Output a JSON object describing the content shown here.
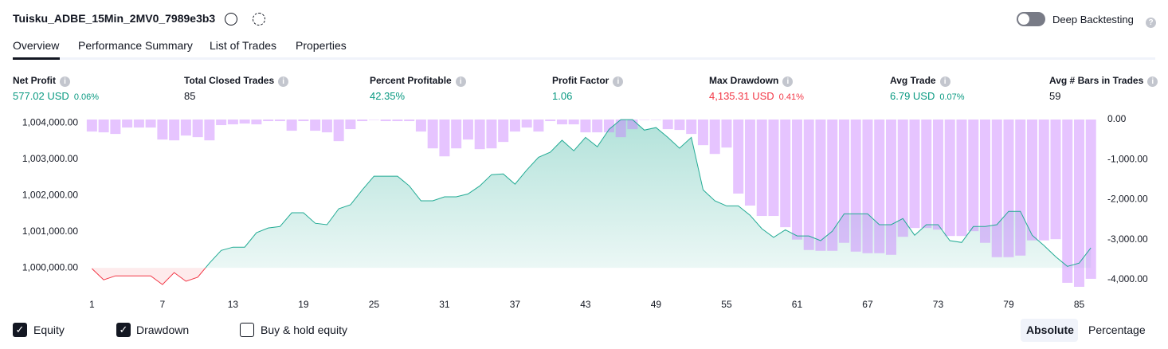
{
  "header": {
    "title": "Tuisku_ADBE_15Min_2MV0_7989e3b3",
    "deep_backtesting": "Deep Backtesting"
  },
  "tabs": [
    "Overview",
    "Performance Summary",
    "List of Trades",
    "Properties"
  ],
  "metrics": [
    {
      "label": "Net Profit",
      "value": "577.02 USD",
      "pct": "0.06%",
      "color": "#089981"
    },
    {
      "label": "Total Closed Trades",
      "value": "85",
      "color": "#131722"
    },
    {
      "label": "Percent Profitable",
      "value": "42.35%",
      "color": "#089981"
    },
    {
      "label": "Profit Factor",
      "value": "1.06",
      "color": "#089981"
    },
    {
      "label": "Max Drawdown",
      "value": "4,135.31 USD",
      "pct": "0.41%",
      "color": "#f23645"
    },
    {
      "label": "Avg Trade",
      "value": "6.79 USD",
      "pct": "0.07%",
      "color": "#089981"
    },
    {
      "label": "Avg # Bars in Trades",
      "value": "59",
      "color": "#131722"
    }
  ],
  "chart_data": {
    "type": "combo",
    "x": [
      1,
      2,
      3,
      4,
      5,
      6,
      7,
      8,
      9,
      10,
      11,
      12,
      13,
      14,
      15,
      16,
      17,
      18,
      19,
      20,
      21,
      22,
      23,
      24,
      25,
      26,
      27,
      28,
      29,
      30,
      31,
      32,
      33,
      34,
      35,
      36,
      37,
      38,
      39,
      40,
      41,
      42,
      43,
      44,
      45,
      46,
      47,
      48,
      49,
      50,
      51,
      52,
      53,
      54,
      55,
      56,
      57,
      58,
      59,
      60,
      61,
      62,
      63,
      64,
      65,
      66,
      67,
      68,
      69,
      70,
      71,
      72,
      73,
      74,
      75,
      76,
      77,
      78,
      79,
      80,
      81,
      82,
      83,
      84,
      85,
      86
    ],
    "xlim": [
      0.5,
      87
    ],
    "xticks": [
      1,
      7,
      13,
      19,
      25,
      31,
      37,
      43,
      49,
      55,
      61,
      67,
      73,
      79,
      85
    ],
    "ylim": [
      999300,
      1004180
    ],
    "yticks": [
      {
        "value": 1000000,
        "label": "1,000,000.00"
      },
      {
        "value": 1001000,
        "label": "1,001,000.00"
      },
      {
        "value": 1002000,
        "label": "1,002,000.00"
      },
      {
        "value": 1003000,
        "label": "1,003,000.00"
      },
      {
        "value": 1004000,
        "label": "1,004,000.00"
      }
    ],
    "y2lim": [
      -4340,
      80
    ],
    "y2ticks": [
      {
        "value": 0,
        "label": "0.00"
      },
      {
        "value": -1000,
        "label": "-1,000.00"
      },
      {
        "value": -2000,
        "label": "-2,000.00"
      },
      {
        "value": -3000,
        "label": "-3,000.00"
      },
      {
        "value": -4000,
        "label": "-4,000.00"
      }
    ],
    "series": [
      {
        "name": "Equity",
        "type": "line",
        "color": "#22ab94",
        "negative_color": "#f23645",
        "values": [
          999980,
          999670,
          999780,
          999780,
          999780,
          999780,
          999540,
          999870,
          999630,
          999740,
          1000130,
          1000480,
          1000570,
          1000570,
          1000970,
          1001100,
          1001140,
          1001520,
          1001520,
          1001230,
          1001190,
          1001630,
          1001740,
          1002150,
          1002530,
          1002530,
          1002530,
          1002260,
          1001850,
          1001850,
          1001960,
          1001960,
          1002040,
          1002260,
          1002570,
          1002590,
          1002310,
          1002700,
          1003050,
          1003190,
          1003520,
          1003230,
          1003600,
          1003340,
          1003820,
          1004090,
          1004090,
          1003800,
          1003870,
          1003600,
          1003300,
          1003600,
          1002150,
          1001850,
          1001710,
          1001710,
          1001450,
          1001080,
          1000840,
          1001050,
          1000880,
          1000880,
          1000750,
          1001010,
          1001490,
          1001490,
          1001490,
          1001190,
          1001190,
          1001360,
          1000900,
          1001190,
          1001190,
          1000750,
          1000700,
          1001140,
          1001140,
          1001190,
          1001560,
          1001560,
          1000900,
          1000620,
          1000310,
          1000040,
          1000130,
          1000550
        ]
      },
      {
        "name": "Drawdown",
        "type": "bar",
        "axis": "y2",
        "color": "#c77dff",
        "values": [
          -300,
          -320,
          -360,
          -200,
          -200,
          -200,
          -500,
          -520,
          -400,
          -440,
          -520,
          -140,
          -120,
          -100,
          -120,
          -40,
          -40,
          -280,
          -40,
          -280,
          -320,
          -540,
          -240,
          -40,
          0,
          -40,
          -40,
          -40,
          -300,
          -720,
          -920,
          -720,
          -500,
          -740,
          -720,
          -560,
          -300,
          -200,
          -300,
          -40,
          -120,
          -120,
          -320,
          -320,
          -320,
          -440,
          -240,
          0,
          0,
          -240,
          -260,
          -360,
          -640,
          -860,
          -700,
          -1850,
          -2150,
          -2410,
          -2410,
          -2690,
          -3000,
          -3260,
          -3280,
          -3280,
          -3080,
          -3300,
          -3340,
          -3340,
          -3380,
          -2930,
          -2710,
          -2710,
          -2750,
          -2910,
          -2910,
          -2790,
          -3080,
          -3440,
          -3440,
          -3400,
          -3020,
          -3020,
          -2990,
          -4080,
          -4180,
          -3980
        ]
      }
    ]
  },
  "footer": {
    "buy_hold": "Buy & hold equity",
    "scale_options": [
      "Absolute",
      "Percentage"
    ]
  }
}
